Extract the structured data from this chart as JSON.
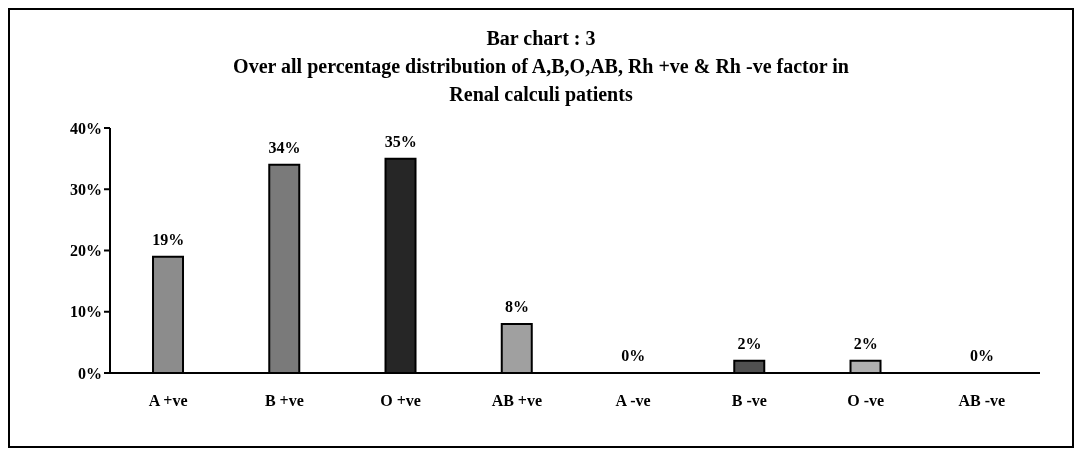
{
  "chart_data": {
    "type": "bar",
    "title": "Bar chart : 3",
    "subtitle": "Over all percentage distribution of A,B,O,AB, Rh +ve & Rh -ve factor in Renal calculi patients",
    "categories": [
      "A +ve",
      "B +ve",
      "O +ve",
      "AB +ve",
      "A -ve",
      "B -ve",
      "O -ve",
      "AB -ve"
    ],
    "values": [
      19,
      34,
      35,
      8,
      0,
      2,
      2,
      0
    ],
    "colors": [
      "#8c8c8c",
      "#7a7a7a",
      "#262626",
      "#a0a0a0",
      "#808080",
      "#505050",
      "#b0b0b0",
      "#808080"
    ],
    "value_labels": [
      "19%",
      "34%",
      "35%",
      "8%",
      "0%",
      "2%",
      "2%",
      "0%"
    ],
    "ylim": [
      0,
      40
    ],
    "yticks": [
      {
        "value": 0,
        "label": "0%"
      },
      {
        "value": 10,
        "label": "10%"
      },
      {
        "value": 20,
        "label": "20%"
      },
      {
        "value": 30,
        "label": "30%"
      },
      {
        "value": 40,
        "label": "40%"
      }
    ],
    "grid": false,
    "legend": false
  }
}
